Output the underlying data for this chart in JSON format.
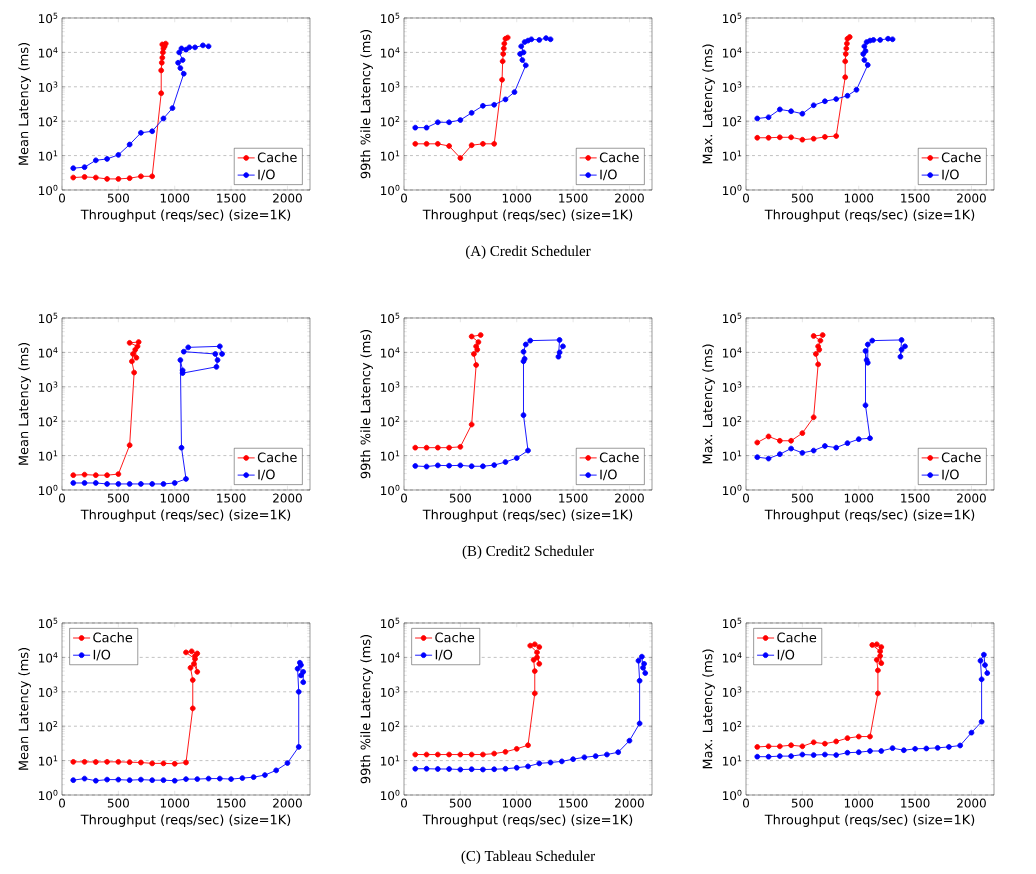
{
  "chart_data": [
    {
      "type": "line",
      "xlabel": "Throughput (reqs/sec) (size=1K)",
      "ylabel": "Mean Latency (ms)",
      "xlim": [
        0,
        2200
      ],
      "xticks": [
        0,
        500,
        1000,
        1500,
        2000
      ],
      "ylim": [
        1,
        100000
      ],
      "yticks": [
        {
          "value": 1,
          "label": "10$^{0}$"
        },
        {
          "value": 10,
          "label": "10$^{1}$"
        },
        {
          "value": 100,
          "label": "10$^{2}$"
        },
        {
          "value": 1000,
          "label": "10$^{3}$"
        },
        {
          "value": 10000,
          "label": "10$^{4}$"
        },
        {
          "value": 100000,
          "label": "10$^{5}$"
        }
      ],
      "log": "y",
      "grid": "y",
      "legend": "bottom right",
      "marker": "circle",
      "series": [
        {
          "name": "Cache",
          "color": "#ff0000",
          "x": [
            100,
            200,
            300,
            400,
            500,
            600,
            700,
            800,
            880,
            880,
            885,
            890,
            895,
            900,
            890,
            910,
            920
          ],
          "values": [
            2.3,
            2.4,
            2.3,
            2.1,
            2.1,
            2.2,
            2.5,
            2.5,
            650,
            3000,
            5000,
            7000,
            10000,
            13000,
            17000,
            15000,
            18000
          ]
        },
        {
          "name": "I/O",
          "color": "#0000ff",
          "x": [
            100,
            200,
            300,
            400,
            500,
            600,
            700,
            800,
            900,
            980,
            1080,
            1050,
            1030,
            1070,
            1040,
            1060,
            1100,
            1130,
            1180,
            1250,
            1300
          ],
          "values": [
            4.3,
            4.6,
            7.3,
            8,
            10.5,
            21,
            46,
            51,
            120,
            240,
            2400,
            3500,
            5000,
            6000,
            10000,
            13000,
            12000,
            14000,
            14000,
            16000,
            15000
          ]
        }
      ]
    },
    {
      "type": "line",
      "xlabel": "Throughput (reqs/sec) (size=1K)",
      "ylabel": "99th %ile Latency (ms)",
      "xlim": [
        0,
        2200
      ],
      "xticks": [
        0,
        500,
        1000,
        1500,
        2000
      ],
      "ylim": [
        1,
        100000
      ],
      "yticks": [
        {
          "value": 1,
          "label": "10$^{0}$"
        },
        {
          "value": 10,
          "label": "10$^{1}$"
        },
        {
          "value": 100,
          "label": "10$^{2}$"
        },
        {
          "value": 1000,
          "label": "10$^{3}$"
        },
        {
          "value": 10000,
          "label": "10$^{4}$"
        },
        {
          "value": 100000,
          "label": "10$^{5}$"
        }
      ],
      "log": "y",
      "grid": "y",
      "legend": "bottom right",
      "marker": "circle",
      "annotations": [
        "(A) Credit Scheduler"
      ],
      "series": [
        {
          "name": "Cache",
          "color": "#ff0000",
          "x": [
            100,
            200,
            300,
            400,
            500,
            600,
            700,
            800,
            870,
            875,
            880,
            885,
            890,
            900,
            920
          ],
          "values": [
            22,
            22,
            22,
            19,
            8.5,
            20,
            22,
            22,
            1600,
            5500,
            9000,
            13000,
            18000,
            25000,
            27000
          ]
        },
        {
          "name": "I/O",
          "color": "#0000ff",
          "x": [
            100,
            200,
            300,
            400,
            500,
            600,
            700,
            800,
            900,
            980,
            1080,
            1050,
            1030,
            1060,
            1040,
            1070,
            1100,
            1130,
            1200,
            1260,
            1300
          ],
          "values": [
            65,
            65,
            93,
            93,
            108,
            175,
            280,
            300,
            430,
            700,
            4200,
            6000,
            9000,
            10000,
            15000,
            20000,
            22000,
            24000,
            23000,
            26000,
            24000
          ]
        }
      ]
    },
    {
      "type": "line",
      "xlabel": "Throughput (reqs/sec) (size=1K)",
      "ylabel": "Max. Latency (ms)",
      "xlim": [
        0,
        2200
      ],
      "xticks": [
        0,
        500,
        1000,
        1500,
        2000
      ],
      "ylim": [
        1,
        100000
      ],
      "yticks": [
        {
          "value": 1,
          "label": "10$^{0}$"
        },
        {
          "value": 10,
          "label": "10$^{1}$"
        },
        {
          "value": 100,
          "label": "10$^{2}$"
        },
        {
          "value": 1000,
          "label": "10$^{3}$"
        },
        {
          "value": 10000,
          "label": "10$^{4}$"
        },
        {
          "value": 100000,
          "label": "10$^{5}$"
        }
      ],
      "log": "y",
      "grid": "y",
      "legend": "bottom right",
      "marker": "circle",
      "series": [
        {
          "name": "Cache",
          "color": "#ff0000",
          "x": [
            100,
            200,
            300,
            400,
            500,
            600,
            700,
            800,
            880,
            880,
            885,
            890,
            895,
            900,
            920
          ],
          "values": [
            33,
            33,
            34,
            34,
            29,
            31,
            35,
            37,
            1900,
            5500,
            9000,
            13000,
            18000,
            25000,
            28000
          ]
        },
        {
          "name": "I/O",
          "color": "#0000ff",
          "x": [
            100,
            200,
            300,
            400,
            500,
            600,
            700,
            800,
            900,
            980,
            1080,
            1050,
            1040,
            1060,
            1050,
            1070,
            1100,
            1130,
            1190,
            1260,
            1300
          ],
          "values": [
            120,
            130,
            220,
            195,
            165,
            290,
            380,
            440,
            550,
            820,
            4300,
            6000,
            9000,
            11000,
            15000,
            20000,
            22000,
            23000,
            23000,
            25000,
            24000
          ]
        }
      ]
    },
    {
      "type": "line",
      "xlabel": "Throughput (reqs/sec) (size=1K)",
      "ylabel": "Mean Latency (ms)",
      "xlim": [
        0,
        2200
      ],
      "xticks": [
        0,
        500,
        1000,
        1500,
        2000
      ],
      "ylim": [
        1,
        100000
      ],
      "yticks": [
        {
          "value": 1,
          "label": "10$^{0}$"
        },
        {
          "value": 10,
          "label": "10$^{1}$"
        },
        {
          "value": 100,
          "label": "10$^{2}$"
        },
        {
          "value": 1000,
          "label": "10$^{3}$"
        },
        {
          "value": 10000,
          "label": "10$^{4}$"
        },
        {
          "value": 100000,
          "label": "10$^{5}$"
        }
      ],
      "log": "y",
      "grid": "y",
      "legend": "bottom right",
      "marker": "circle",
      "series": [
        {
          "name": "Cache",
          "color": "#ff0000",
          "x": [
            100,
            200,
            300,
            400,
            500,
            600,
            640,
            620,
            630,
            660,
            650,
            670,
            600,
            680
          ],
          "values": [
            2.7,
            2.8,
            2.7,
            2.7,
            2.9,
            20,
            2600,
            5500,
            9000,
            7000,
            12000,
            15000,
            19000,
            20000
          ]
        },
        {
          "name": "I/O",
          "color": "#0000ff",
          "x": [
            100,
            200,
            300,
            400,
            500,
            600,
            700,
            800,
            900,
            1000,
            1100,
            1060,
            1050,
            1070,
            1070,
            1370,
            1380,
            1360,
            1080,
            1120,
            1400,
            1420
          ],
          "values": [
            1.6,
            1.6,
            1.6,
            1.5,
            1.5,
            1.5,
            1.5,
            1.5,
            1.5,
            1.6,
            2.1,
            17,
            6000,
            3000,
            2500,
            3800,
            6000,
            9000,
            10500,
            14000,
            15000,
            9000
          ]
        }
      ]
    },
    {
      "type": "line",
      "xlabel": "Throughput (reqs/sec) (size=1K)",
      "ylabel": "99th %ile Latency (ms)",
      "xlim": [
        0,
        2200
      ],
      "xticks": [
        0,
        500,
        1000,
        1500,
        2000
      ],
      "ylim": [
        1,
        100000
      ],
      "yticks": [
        {
          "value": 1,
          "label": "10$^{0}$"
        },
        {
          "value": 10,
          "label": "10$^{1}$"
        },
        {
          "value": 100,
          "label": "10$^{2}$"
        },
        {
          "value": 1000,
          "label": "10$^{3}$"
        },
        {
          "value": 10000,
          "label": "10$^{4}$"
        },
        {
          "value": 100000,
          "label": "10$^{5}$"
        }
      ],
      "log": "y",
      "grid": "y",
      "legend": "bottom right",
      "marker": "circle",
      "annotations": [
        "(B) Credit2 Scheduler"
      ],
      "series": [
        {
          "name": "Cache",
          "color": "#ff0000",
          "x": [
            100,
            200,
            300,
            400,
            500,
            600,
            640,
            620,
            650,
            640,
            660,
            600,
            680
          ],
          "values": [
            17,
            17,
            17,
            17,
            18,
            80,
            4300,
            9000,
            12000,
            15000,
            20000,
            29000,
            32000
          ]
        },
        {
          "name": "I/O",
          "color": "#0000ff",
          "x": [
            100,
            200,
            300,
            400,
            500,
            600,
            700,
            800,
            900,
            1000,
            1100,
            1060,
            1060,
            1070,
            1060,
            1080,
            1120,
            1380,
            1370,
            1380,
            1410
          ],
          "values": [
            5,
            4.8,
            5.2,
            5.1,
            5.2,
            4.9,
            4.9,
            5.3,
            6.5,
            8.5,
            14,
            150,
            5500,
            6500,
            10500,
            17000,
            22000,
            23000,
            7500,
            10000,
            15000
          ]
        }
      ]
    },
    {
      "type": "line",
      "xlabel": "Throughput (reqs/sec) (size=1K)",
      "ylabel": "Max. Latency (ms)",
      "xlim": [
        0,
        2200
      ],
      "xticks": [
        0,
        500,
        1000,
        1500,
        2000
      ],
      "ylim": [
        1,
        100000
      ],
      "yticks": [
        {
          "value": 1,
          "label": "10$^{0}$"
        },
        {
          "value": 10,
          "label": "10$^{1}$"
        },
        {
          "value": 100,
          "label": "10$^{2}$"
        },
        {
          "value": 1000,
          "label": "10$^{3}$"
        },
        {
          "value": 10000,
          "label": "10$^{4}$"
        },
        {
          "value": 100000,
          "label": "10$^{5}$"
        }
      ],
      "log": "y",
      "grid": "y",
      "legend": "bottom right",
      "marker": "circle",
      "series": [
        {
          "name": "Cache",
          "color": "#ff0000",
          "x": [
            100,
            200,
            300,
            400,
            500,
            600,
            640,
            620,
            650,
            640,
            660,
            600,
            680
          ],
          "values": [
            24,
            36,
            27,
            27,
            45,
            130,
            4500,
            9000,
            12000,
            15000,
            22000,
            30000,
            32000
          ]
        },
        {
          "name": "I/O",
          "color": "#0000ff",
          "x": [
            100,
            200,
            300,
            400,
            500,
            600,
            700,
            800,
            900,
            1000,
            1100,
            1060,
            1060,
            1070,
            1080,
            1080,
            1120,
            1380,
            1370,
            1380,
            1410
          ],
          "values": [
            9,
            8.2,
            11,
            16,
            12,
            14,
            19,
            17,
            23,
            30,
            32,
            290,
            11000,
            6000,
            5000,
            17000,
            22000,
            23000,
            7500,
            12000,
            15000
          ]
        }
      ]
    },
    {
      "type": "line",
      "xlabel": "Throughput (reqs/sec) (size=1K)",
      "ylabel": "Mean Latency (ms)",
      "xlim": [
        0,
        2200
      ],
      "xticks": [
        0,
        500,
        1000,
        1500,
        2000
      ],
      "ylim": [
        1,
        100000
      ],
      "yticks": [
        {
          "value": 1,
          "label": "10$^{0}$"
        },
        {
          "value": 10,
          "label": "10$^{1}$"
        },
        {
          "value": 100,
          "label": "10$^{2}$"
        },
        {
          "value": 1000,
          "label": "10$^{3}$"
        },
        {
          "value": 10000,
          "label": "10$^{4}$"
        },
        {
          "value": 100000,
          "label": "10$^{5}$"
        }
      ],
      "log": "y",
      "grid": "y",
      "legend": "top left",
      "marker": "circle",
      "series": [
        {
          "name": "Cache",
          "color": "#ff0000",
          "x": [
            100,
            200,
            300,
            400,
            500,
            600,
            700,
            800,
            900,
            1000,
            1100,
            1160,
            1160,
            1140,
            1170,
            1200,
            1180,
            1100,
            1150,
            1200,
            1180
          ],
          "values": [
            9.2,
            9.2,
            9.1,
            9.2,
            9.2,
            9,
            8.8,
            8.3,
            8.3,
            8.1,
            8.8,
            330,
            2200,
            5000,
            6500,
            3800,
            9000,
            14000,
            15000,
            13000,
            11000
          ]
        },
        {
          "name": "I/O",
          "color": "#0000ff",
          "x": [
            100,
            200,
            300,
            400,
            500,
            600,
            700,
            800,
            900,
            1000,
            1100,
            1200,
            1300,
            1400,
            1500,
            1600,
            1700,
            1800,
            1900,
            2000,
            2100,
            2100,
            2090,
            2110,
            2120,
            2120,
            2140,
            2140
          ],
          "values": [
            2.7,
            3,
            2.6,
            2.8,
            2.8,
            2.7,
            2.8,
            2.7,
            2.7,
            2.6,
            2.9,
            2.9,
            3,
            3,
            2.9,
            3.1,
            3.3,
            3.8,
            5.2,
            8.5,
            25,
            1000,
            4700,
            7000,
            6000,
            3000,
            3800,
            1900
          ]
        }
      ]
    },
    {
      "type": "line",
      "xlabel": "Throughput (reqs/sec) (size=1K)",
      "ylabel": "99th %ile Latency (ms)",
      "xlim": [
        0,
        2200
      ],
      "xticks": [
        0,
        500,
        1000,
        1500,
        2000
      ],
      "ylim": [
        1,
        100000
      ],
      "yticks": [
        {
          "value": 1,
          "label": "10$^{0}$"
        },
        {
          "value": 10,
          "label": "10$^{1}$"
        },
        {
          "value": 100,
          "label": "10$^{2}$"
        },
        {
          "value": 1000,
          "label": "10$^{3}$"
        },
        {
          "value": 10000,
          "label": "10$^{4}$"
        },
        {
          "value": 100000,
          "label": "10$^{5}$"
        }
      ],
      "log": "y",
      "grid": "y",
      "legend": "top left",
      "marker": "circle",
      "annotations": [
        "(C) Tableau Scheduler"
      ],
      "series": [
        {
          "name": "Cache",
          "color": "#ff0000",
          "x": [
            100,
            200,
            300,
            400,
            500,
            600,
            700,
            800,
            900,
            1000,
            1100,
            1160,
            1160,
            1150,
            1180,
            1200,
            1180,
            1120,
            1160,
            1200
          ],
          "values": [
            15,
            15,
            15,
            15,
            15,
            15,
            15,
            16,
            18,
            22,
            28,
            900,
            4000,
            8500,
            10000,
            6500,
            14000,
            22000,
            24000,
            20000
          ]
        },
        {
          "name": "I/O",
          "color": "#0000ff",
          "x": [
            100,
            200,
            300,
            400,
            500,
            600,
            700,
            800,
            900,
            1000,
            1100,
            1200,
            1300,
            1400,
            1500,
            1600,
            1700,
            1800,
            1900,
            2000,
            2090,
            2090,
            2080,
            2110,
            2120,
            2140,
            2130
          ],
          "values": [
            5.8,
            5.8,
            5.7,
            5.7,
            5.5,
            5.6,
            5.5,
            5.6,
            5.8,
            6.2,
            6.8,
            8.3,
            8.8,
            9.5,
            11,
            12.5,
            13.5,
            15,
            17.5,
            38,
            120,
            2100,
            8000,
            10500,
            5000,
            3500,
            6500
          ]
        }
      ]
    },
    {
      "type": "line",
      "xlabel": "Throughput (reqs/sec) (size=1K)",
      "ylabel": "Max. Latency (ms)",
      "xlim": [
        0,
        2200
      ],
      "xticks": [
        0,
        500,
        1000,
        1500,
        2000
      ],
      "ylim": [
        1,
        100000
      ],
      "yticks": [
        {
          "value": 1,
          "label": "10$^{0}$"
        },
        {
          "value": 10,
          "label": "10$^{1}$"
        },
        {
          "value": 100,
          "label": "10$^{2}$"
        },
        {
          "value": 1000,
          "label": "10$^{3}$"
        },
        {
          "value": 10000,
          "label": "10$^{4}$"
        },
        {
          "value": 100000,
          "label": "10$^{5}$"
        }
      ],
      "log": "y",
      "grid": "y",
      "legend": "top left",
      "marker": "circle",
      "series": [
        {
          "name": "Cache",
          "color": "#ff0000",
          "x": [
            100,
            200,
            300,
            400,
            500,
            600,
            700,
            800,
            900,
            1000,
            1100,
            1170,
            1170,
            1160,
            1190,
            1200,
            1190,
            1120,
            1160,
            1200
          ],
          "values": [
            25,
            26,
            26,
            28,
            26,
            34,
            31,
            36,
            45,
            50,
            50,
            900,
            4200,
            8500,
            11000,
            6800,
            15000,
            23000,
            24000,
            20000
          ]
        },
        {
          "name": "I/O",
          "color": "#0000ff",
          "x": [
            100,
            200,
            300,
            400,
            500,
            600,
            700,
            800,
            900,
            1000,
            1100,
            1200,
            1300,
            1400,
            1500,
            1600,
            1700,
            1800,
            1900,
            2000,
            2090,
            2090,
            2080,
            2110,
            2120,
            2140
          ],
          "values": [
            13,
            13,
            13.5,
            13.5,
            15,
            14.5,
            15,
            14.5,
            17,
            17.5,
            19,
            19,
            23,
            20,
            22,
            22.5,
            23.5,
            25,
            27.5,
            65,
            135,
            2300,
            8000,
            12000,
            6000,
            3500
          ]
        }
      ]
    }
  ]
}
